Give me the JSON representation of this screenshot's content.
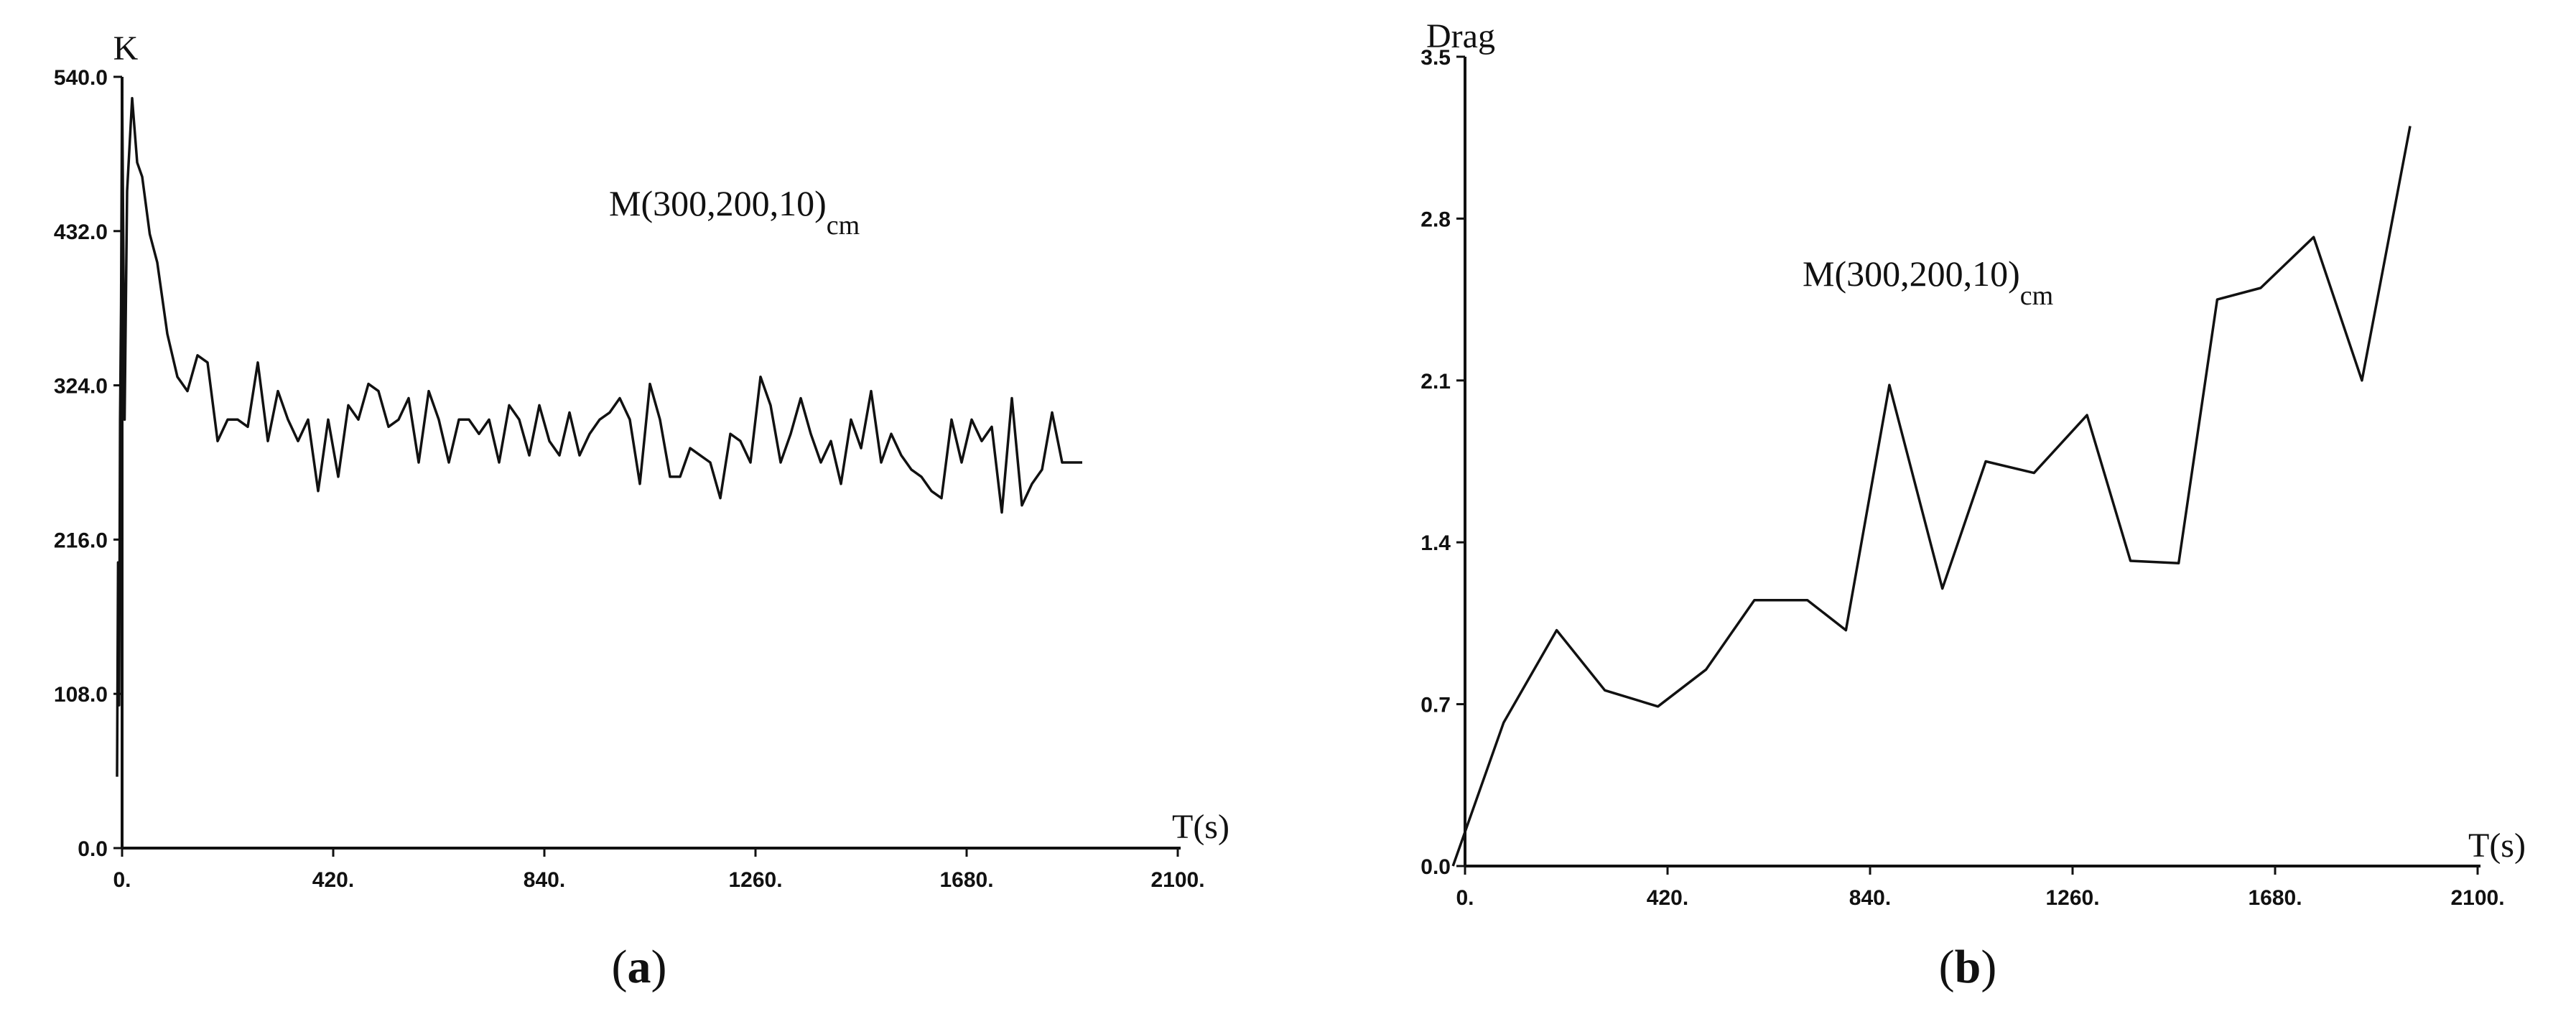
{
  "chart_data": [
    {
      "type": "line",
      "panel_label": "a",
      "ylabel": "K",
      "xlabel": "T(s)",
      "annotation": {
        "main": "M(300,200,10)",
        "sub": "cm"
      },
      "xlim": [
        0,
        2100
      ],
      "ylim": [
        0,
        540
      ],
      "x_ticks": [
        "0.",
        "420.",
        "840.",
        "1260.",
        "1680.",
        "2100."
      ],
      "x_tick_values": [
        0,
        420,
        840,
        1260,
        1680,
        2100
      ],
      "y_ticks": [
        "0.0",
        "108.0",
        "216.0",
        "324.0",
        "432.0",
        "540.0"
      ],
      "y_tick_values": [
        0,
        108,
        216,
        324,
        432,
        540
      ],
      "series": [
        {
          "x": [
            -10,
            -8,
            -6,
            -4,
            -2,
            0,
            5,
            10,
            20,
            30,
            40,
            55,
            70,
            90,
            110,
            130,
            150,
            170,
            190,
            210,
            230,
            250,
            270,
            290,
            310,
            330,
            350,
            370,
            390,
            410,
            430,
            450,
            470,
            490,
            510,
            530,
            550,
            570,
            590,
            610,
            630,
            650,
            670,
            690,
            710,
            730,
            750,
            770,
            790,
            810,
            830,
            850,
            870,
            890,
            910,
            930,
            950,
            970,
            990,
            1010,
            1030,
            1050,
            1070,
            1090,
            1110,
            1130,
            1150,
            1170,
            1190,
            1210,
            1230,
            1250,
            1270,
            1290,
            1310,
            1330,
            1350,
            1370,
            1390,
            1410,
            1430,
            1450,
            1470,
            1490,
            1510,
            1530,
            1550,
            1570,
            1590,
            1610,
            1630,
            1650,
            1670,
            1690,
            1710,
            1730,
            1750,
            1770,
            1790,
            1810,
            1830,
            1850,
            1870,
            1890,
            1910
          ],
          "y": [
            50,
            200,
            100,
            300,
            380,
            535,
            300,
            460,
            525,
            480,
            470,
            430,
            410,
            360,
            330,
            320,
            345,
            340,
            285,
            300,
            300,
            295,
            340,
            285,
            320,
            300,
            285,
            300,
            250,
            300,
            260,
            310,
            300,
            325,
            320,
            295,
            300,
            315,
            270,
            320,
            300,
            270,
            300,
            300,
            290,
            300,
            270,
            310,
            300,
            275,
            310,
            285,
            275,
            305,
            275,
            290,
            300,
            305,
            315,
            300,
            255,
            325,
            300,
            260,
            260,
            280,
            275,
            270,
            245,
            290,
            285,
            270,
            330,
            310,
            270,
            290,
            315,
            290,
            270,
            285,
            255,
            300,
            280,
            320,
            270,
            290,
            275,
            265,
            260,
            250,
            245,
            300,
            270,
            300,
            285,
            295,
            235,
            315,
            240,
            255,
            265,
            305,
            270,
            270,
            270
          ]
        }
      ]
    },
    {
      "type": "line",
      "panel_label": "b",
      "ylabel": "Drag",
      "xlabel": "T(s)",
      "annotation": {
        "main": "M(300,200,10)",
        "sub": "cm"
      },
      "xlim": [
        0,
        2100
      ],
      "ylim": [
        0,
        3.5
      ],
      "x_ticks": [
        "0.",
        "420.",
        "840.",
        "1260.",
        "1680.",
        "2100."
      ],
      "x_tick_values": [
        0,
        420,
        840,
        1260,
        1680,
        2100
      ],
      "y_ticks": [
        "0.0",
        "0.7",
        "1.4",
        "2.1",
        "2.8",
        "3.5"
      ],
      "y_tick_values": [
        0,
        0.7,
        1.4,
        2.1,
        2.8,
        3.5
      ],
      "series": [
        {
          "x": [
            -25,
            80,
            190,
            290,
            400,
            500,
            600,
            710,
            790,
            880,
            990,
            1080,
            1180,
            1290,
            1380,
            1480,
            1560,
            1650,
            1760,
            1860,
            1960
          ],
          "y": [
            0.0,
            0.62,
            1.02,
            0.76,
            0.69,
            0.85,
            1.15,
            1.15,
            1.02,
            2.08,
            1.2,
            1.75,
            1.7,
            1.95,
            1.32,
            1.31,
            2.45,
            2.5,
            2.72,
            2.1,
            3.2
          ]
        }
      ]
    }
  ]
}
